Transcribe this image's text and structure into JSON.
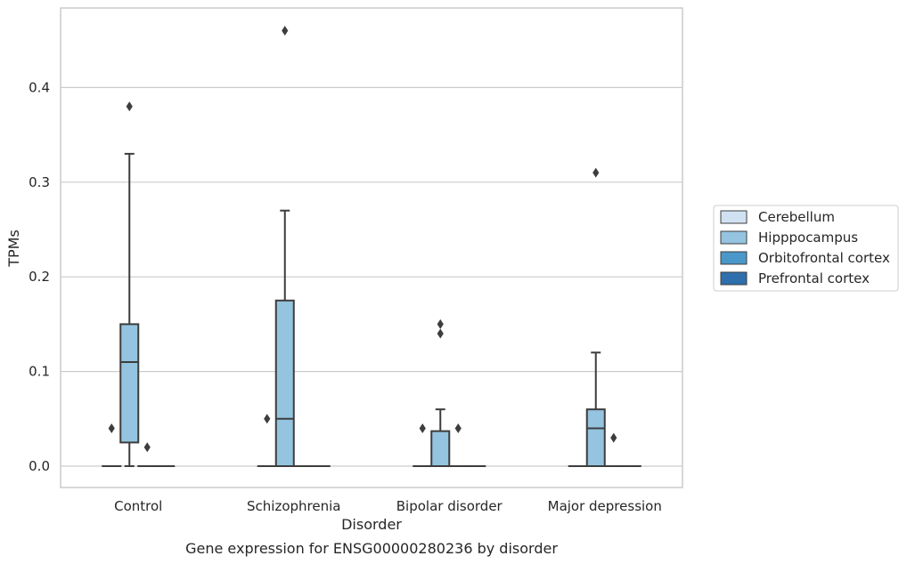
{
  "chart_data": {
    "type": "box",
    "title": "",
    "caption": "Gene expression for ENSG00000280236 by disorder",
    "xlabel": "Disorder",
    "ylabel": "TPMs",
    "ylim": [
      -0.022,
      0.48
    ],
    "yticks": [
      "0.0",
      "0.1",
      "0.2",
      "0.3",
      "0.4"
    ],
    "grid": true,
    "legend_position": "right",
    "categories": [
      "Control",
      "Schizophrenia",
      "Bipolar disorder",
      "Major depression"
    ],
    "series": [
      {
        "name": "Cerebellum",
        "color": "#d0e1f2",
        "boxes": [
          {
            "q1": 0,
            "median": 0,
            "q3": 0,
            "whisker_low": 0,
            "whisker_high": 0,
            "outliers": [
              0.04
            ]
          },
          {
            "q1": 0,
            "median": 0,
            "q3": 0,
            "whisker_low": 0,
            "whisker_high": 0,
            "outliers": [
              0.05
            ]
          },
          {
            "q1": 0,
            "median": 0,
            "q3": 0,
            "whisker_low": 0,
            "whisker_high": 0,
            "outliers": [
              0.04
            ]
          },
          {
            "q1": 0,
            "median": 0,
            "q3": 0,
            "whisker_low": 0,
            "whisker_high": 0,
            "outliers": []
          }
        ]
      },
      {
        "name": "Hipppocampus",
        "color": "#94c4df",
        "boxes": [
          {
            "q1": 0.025,
            "median": 0.11,
            "q3": 0.15,
            "whisker_low": 0,
            "whisker_high": 0.33,
            "outliers": [
              0.38
            ]
          },
          {
            "q1": 0,
            "median": 0.05,
            "q3": 0.175,
            "whisker_low": 0,
            "whisker_high": 0.27,
            "outliers": [
              0.46
            ]
          },
          {
            "q1": 0,
            "median": 0,
            "q3": 0.037,
            "whisker_low": 0,
            "whisker_high": 0.06,
            "outliers": [
              0.14,
              0.15
            ]
          },
          {
            "q1": 0,
            "median": 0.04,
            "q3": 0.06,
            "whisker_low": 0,
            "whisker_high": 0.12,
            "outliers": [
              0.31
            ]
          }
        ]
      },
      {
        "name": "Orbitofrontal cortex",
        "color": "#4a98c9",
        "boxes": [
          {
            "q1": 0,
            "median": 0,
            "q3": 0,
            "whisker_low": 0,
            "whisker_high": 0,
            "outliers": [
              0.02
            ]
          },
          {
            "q1": 0,
            "median": 0,
            "q3": 0,
            "whisker_low": 0,
            "whisker_high": 0,
            "outliers": []
          },
          {
            "q1": 0,
            "median": 0,
            "q3": 0,
            "whisker_low": 0,
            "whisker_high": 0,
            "outliers": [
              0.04
            ]
          },
          {
            "q1": 0,
            "median": 0,
            "q3": 0,
            "whisker_low": 0,
            "whisker_high": 0,
            "outliers": [
              0.03
            ]
          }
        ]
      },
      {
        "name": "Prefrontal cortex",
        "color": "#2e6fac",
        "boxes": [
          {
            "q1": 0,
            "median": 0,
            "q3": 0,
            "whisker_low": 0,
            "whisker_high": 0,
            "outliers": []
          },
          {
            "q1": 0,
            "median": 0,
            "q3": 0,
            "whisker_low": 0,
            "whisker_high": 0,
            "outliers": []
          },
          {
            "q1": 0,
            "median": 0,
            "q3": 0,
            "whisker_low": 0,
            "whisker_high": 0,
            "outliers": []
          },
          {
            "q1": 0,
            "median": 0,
            "q3": 0,
            "whisker_low": 0,
            "whisker_high": 0,
            "outliers": []
          }
        ]
      }
    ]
  }
}
